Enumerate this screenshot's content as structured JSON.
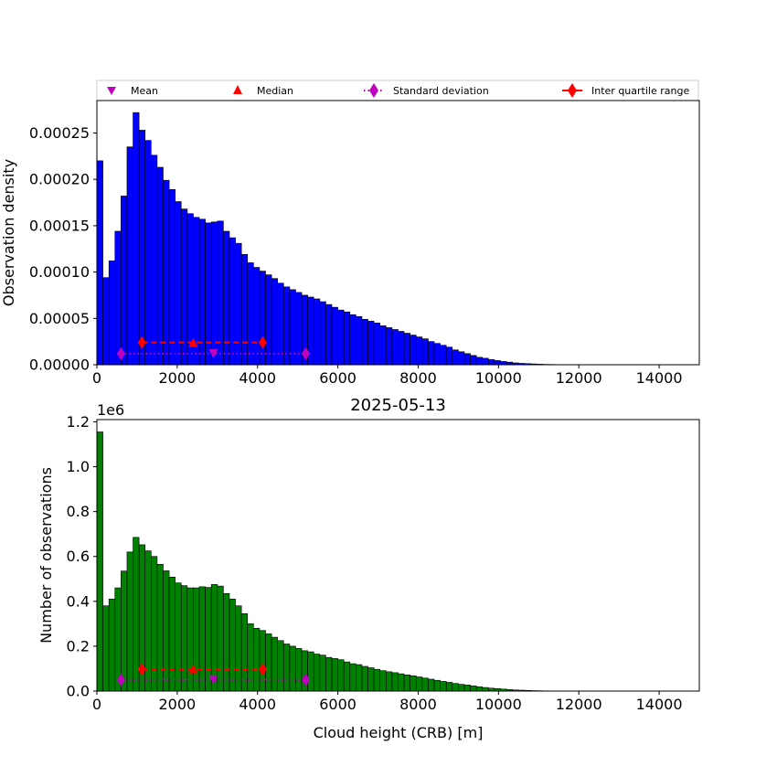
{
  "legend": {
    "placement": "top",
    "entries": [
      {
        "label": "Mean",
        "marker": "triangle-down",
        "color": "#bf00bf"
      },
      {
        "label": "Median",
        "marker": "triangle-up",
        "color": "#ff0000"
      },
      {
        "label": "Standard deviation",
        "marker": "diamond-dotted-line",
        "color": "#bf00bf"
      },
      {
        "label": "Inter quartile range",
        "marker": "diamond-dashed-line",
        "color": "#ff0000"
      }
    ]
  },
  "chart_data": [
    {
      "type": "bar",
      "title": "",
      "xlabel": "",
      "ylabel": "Observation density",
      "bar_color": "#0000ff",
      "xlim": [
        0,
        15000
      ],
      "ylim": [
        0,
        0.000285
      ],
      "xticks": [
        0,
        2000,
        4000,
        6000,
        8000,
        10000,
        12000,
        14000
      ],
      "yticks": [
        0,
        5e-05,
        0.0001,
        0.00015,
        0.0002,
        0.00025
      ],
      "ytick_labels": [
        "0.00000",
        "0.00005",
        "0.00010",
        "0.00015",
        "0.00020",
        "0.00025"
      ],
      "bin_width": 150,
      "values": [
        0.00022,
        9.4e-05,
        0.000112,
        0.000144,
        0.000182,
        0.000235,
        0.000272,
        0.000253,
        0.000242,
        0.000226,
        0.000213,
        0.000199,
        0.000189,
        0.000176,
        0.000168,
        0.000163,
        0.000159,
        0.000157,
        0.000153,
        0.000154,
        0.000155,
        0.000144,
        0.000137,
        0.000131,
        0.000119,
        0.00011,
        0.000105,
        0.000101,
        9.7e-05,
        9.3e-05,
        8.8e-05,
        8.4e-05,
        8.1e-05,
        7.8e-05,
        7.5e-05,
        7.3e-05,
        7.1e-05,
        6.8e-05,
        6.5e-05,
        6.2e-05,
        5.9e-05,
        5.7e-05,
        5.4e-05,
        5.2e-05,
        4.9e-05,
        4.7e-05,
        4.5e-05,
        4.2e-05,
        4e-05,
        3.8e-05,
        3.6e-05,
        3.4e-05,
        3.2e-05,
        3e-05,
        2.8e-05,
        2.5e-05,
        2.3e-05,
        2.1e-05,
        1.9e-05,
        1.6e-05,
        1.4e-05,
        1.2e-05,
        1e-05,
        8e-06,
        7e-06,
        5.5e-06,
        4.5e-06,
        3.5e-06,
        2.8e-06,
        2e-06,
        1.5e-06,
        1.2e-06,
        9e-07,
        6e-07,
        4e-07,
        3e-07,
        2e-07,
        1e-07,
        1e-07,
        5e-08,
        5e-08,
        3e-08,
        2e-08,
        1e-08,
        1e-08
      ],
      "stats": {
        "mean": 2900,
        "median": 2400,
        "std_range": [
          600,
          5200
        ],
        "iqr_range": [
          1120,
          4130
        ],
        "mean_y": 1.2e-05,
        "median_y": 2.3e-05,
        "std_y": 1.2e-05,
        "iqr_y": 2.4e-05
      }
    },
    {
      "type": "bar",
      "title": "2025-05-13",
      "xlabel": "Cloud height (CRB) [m]",
      "ylabel": "Number of observations",
      "y_offset_label": "1e6",
      "bar_color": "#008000",
      "xlim": [
        0,
        15000
      ],
      "ylim": [
        0,
        1.21
      ],
      "xticks": [
        0,
        2000,
        4000,
        6000,
        8000,
        10000,
        12000,
        14000
      ],
      "yticks": [
        0,
        0.2,
        0.4,
        0.6,
        0.8,
        1.0,
        1.2
      ],
      "ytick_labels": [
        "0.0",
        "0.2",
        "0.4",
        "0.6",
        "0.8",
        "1.0",
        "1.2"
      ],
      "bin_width": 150,
      "values": [
        1.155,
        0.38,
        0.41,
        0.46,
        0.535,
        0.62,
        0.685,
        0.652,
        0.625,
        0.6,
        0.565,
        0.536,
        0.508,
        0.482,
        0.47,
        0.46,
        0.46,
        0.465,
        0.462,
        0.475,
        0.468,
        0.435,
        0.41,
        0.38,
        0.345,
        0.3,
        0.28,
        0.27,
        0.255,
        0.24,
        0.225,
        0.21,
        0.2,
        0.19,
        0.18,
        0.175,
        0.165,
        0.16,
        0.15,
        0.145,
        0.14,
        0.13,
        0.122,
        0.118,
        0.11,
        0.104,
        0.097,
        0.091,
        0.086,
        0.082,
        0.077,
        0.072,
        0.068,
        0.063,
        0.058,
        0.053,
        0.048,
        0.043,
        0.039,
        0.034,
        0.03,
        0.027,
        0.023,
        0.019,
        0.016,
        0.013,
        0.011,
        0.009,
        0.007,
        0.005,
        0.004,
        0.003,
        0.002,
        0.0015,
        0.001,
        0.0008,
        0.0006,
        0.0004,
        0.0003,
        0.0002,
        0.00015,
        0.0001,
        8e-05,
        5e-05,
        3e-05
      ],
      "stats": {
        "mean": 2900,
        "median": 2400,
        "std_range": [
          600,
          5200
        ],
        "iqr_range": [
          1120,
          4130
        ],
        "mean_y": 0.05,
        "median_y": 0.095,
        "std_y": 0.05,
        "iqr_y": 0.097
      }
    }
  ]
}
